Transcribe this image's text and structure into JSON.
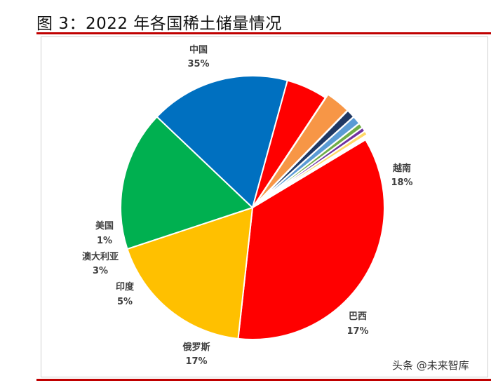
{
  "figure": {
    "title": "图 3：2022 年各国稀土储量情况"
  },
  "watermark": {
    "text": "头条 @未来智库"
  },
  "chart_data": {
    "type": "pie",
    "title": "",
    "slices": [
      {
        "label": "中国",
        "value_label": "35%",
        "value": 35,
        "color": "#ff0000"
      },
      {
        "label": "越南",
        "value_label": "18%",
        "value": 18,
        "color": "#ffc000"
      },
      {
        "label": "巴西",
        "value_label": "17%",
        "value": 17,
        "color": "#00b050"
      },
      {
        "label": "俄罗斯",
        "value_label": "17%",
        "value": 17,
        "color": "#0070c0"
      },
      {
        "label": "印度",
        "value_label": "5%",
        "value": 5,
        "color": "#ff0000"
      },
      {
        "label": "澳大利亚",
        "value_label": "3%",
        "value": 3,
        "color": "#f79646"
      },
      {
        "label": "美国",
        "value_label": "1%",
        "value": 1,
        "color": "#1f3864"
      },
      {
        "label": "",
        "value_label": "",
        "value": 1,
        "color": "#5b9bd5"
      },
      {
        "label": "",
        "value_label": "",
        "value": 0.6,
        "color": "#70ad47"
      },
      {
        "label": "",
        "value_label": "",
        "value": 0.5,
        "color": "#7030a0"
      },
      {
        "label": "",
        "value_label": "",
        "value": 0.5,
        "color": "#ffd966"
      },
      {
        "label": "",
        "value_label": "",
        "value": 0.4,
        "color": "#ffffff"
      }
    ]
  }
}
